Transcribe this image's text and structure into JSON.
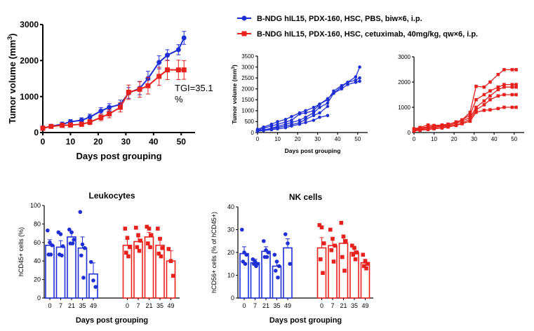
{
  "colors": {
    "pbs": "#1f2fd6",
    "cetux": "#e8211d",
    "axis": "#000000"
  },
  "legend": {
    "pbs": "B-NDG hIL15, PDX-160, HSC, PBS, biw×6, i.p.",
    "cetux": "B-NDG hIL15, PDX-160, HSC, cetuximab, 40mg/kg, qw×6, i.p."
  },
  "chart_data": [
    {
      "id": "mean",
      "type": "line",
      "title": "",
      "xlabel": "Days post grouping",
      "ylabel_main": "Tumor volume (mm",
      "ylabel_sup": "3",
      "ylabel_end": ")",
      "xlim": [
        0,
        55
      ],
      "ylim": [
        0,
        3000
      ],
      "xticks": [
        0,
        10,
        20,
        30,
        40,
        50
      ],
      "yticks": [
        0,
        1000,
        2000,
        3000
      ],
      "annotation": [
        "TGI=35.1",
        "%"
      ],
      "series": [
        {
          "name": "pbs",
          "x": [
            0,
            3,
            7,
            10,
            14,
            17,
            21,
            24,
            28,
            31,
            35,
            38,
            42,
            45,
            49,
            51
          ],
          "y": [
            120,
            175,
            230,
            300,
            340,
            430,
            600,
            700,
            780,
            1100,
            1230,
            1500,
            1950,
            2150,
            2300,
            2630
          ],
          "err": [
            60,
            50,
            60,
            60,
            70,
            80,
            90,
            100,
            120,
            150,
            180,
            200,
            180,
            150,
            140,
            180
          ]
        },
        {
          "name": "cetux",
          "x": [
            0,
            3,
            7,
            10,
            14,
            17,
            21,
            24,
            28,
            31,
            35,
            38,
            42,
            45,
            49,
            51
          ],
          "y": [
            120,
            170,
            200,
            210,
            230,
            290,
            420,
            520,
            700,
            1120,
            1200,
            1300,
            1560,
            1740,
            1740,
            1740
          ],
          "err": [
            60,
            50,
            60,
            60,
            60,
            70,
            90,
            110,
            130,
            200,
            220,
            230,
            250,
            270,
            270,
            260
          ]
        }
      ]
    },
    {
      "id": "pbs-ind",
      "type": "line",
      "xlabel": "Days post grouping",
      "ylabel_main": "Tumor volume (mm",
      "ylabel_sup": "3",
      "ylabel_end": ")",
      "xlim": [
        0,
        55
      ],
      "ylim": [
        0,
        3500
      ],
      "xticks": [
        0,
        10,
        20,
        30,
        40,
        50
      ],
      "yticks": [
        0,
        500,
        1000,
        1500,
        2000,
        2500,
        3000,
        3500
      ],
      "series": [
        {
          "x": [
            0,
            3,
            7,
            10,
            14,
            17,
            21,
            24,
            28,
            31,
            35,
            38,
            42,
            45,
            49,
            51
          ],
          "y": [
            150,
            250,
            380,
            500,
            600,
            730,
            900,
            1000,
            1150,
            1300,
            1550,
            1800,
            2100,
            2300,
            2550,
            3000
          ]
        },
        {
          "x": [
            0,
            3,
            7,
            10,
            14,
            17,
            21,
            24,
            28,
            31,
            35,
            38,
            42,
            45,
            49,
            51
          ],
          "y": [
            100,
            200,
            300,
            380,
            480,
            560,
            850,
            900,
            1000,
            1300,
            1500,
            1900,
            2150,
            2300,
            2400,
            2500
          ]
        },
        {
          "x": [
            0,
            3,
            7,
            10,
            14,
            17,
            21,
            24,
            28,
            31,
            35,
            38,
            42,
            45,
            49,
            51
          ],
          "y": [
            80,
            120,
            200,
            280,
            380,
            460,
            560,
            700,
            900,
            1150,
            1350,
            1800,
            2000,
            2200,
            2300,
            2350
          ]
        },
        {
          "x": [
            0,
            3,
            7,
            10,
            14,
            17,
            21,
            24,
            28,
            31,
            35
          ],
          "y": [
            80,
            120,
            180,
            230,
            300,
            360,
            450,
            600,
            780,
            900,
            1200
          ]
        },
        {
          "x": [
            0,
            3,
            7,
            10,
            14,
            17,
            21,
            24,
            28,
            31,
            35
          ],
          "y": [
            60,
            90,
            130,
            170,
            220,
            300,
            380,
            460,
            560,
            700,
            780
          ]
        }
      ]
    },
    {
      "id": "cetux-ind",
      "type": "line",
      "xlim": [
        0,
        55
      ],
      "ylim": [
        0,
        3000
      ],
      "xticks": [
        0,
        10,
        20,
        30,
        40,
        50
      ],
      "yticks": [
        0,
        1000,
        2000,
        3000
      ],
      "series": [
        {
          "x": [
            0,
            3,
            7,
            10,
            14,
            17,
            21,
            24,
            28,
            31,
            35,
            38,
            42,
            45,
            49,
            51
          ],
          "y": [
            150,
            200,
            300,
            280,
            300,
            330,
            400,
            500,
            800,
            1830,
            1800,
            2000,
            2300,
            2490,
            2490,
            2490
          ]
        },
        {
          "x": [
            0,
            3,
            7,
            10,
            14,
            17,
            21,
            24,
            28,
            31,
            35,
            38,
            42,
            45,
            49,
            51
          ],
          "y": [
            120,
            180,
            220,
            250,
            280,
            320,
            420,
            500,
            700,
            1300,
            1500,
            1650,
            1800,
            1900,
            1900,
            1900
          ]
        },
        {
          "x": [
            0,
            3,
            7,
            10,
            14,
            17,
            21,
            24,
            28,
            31,
            35,
            38,
            42,
            45,
            49,
            51
          ],
          "y": [
            100,
            150,
            200,
            220,
            250,
            280,
            360,
            450,
            600,
            1000,
            1250,
            1450,
            1700,
            1800,
            1800,
            1800
          ]
        },
        {
          "x": [
            0,
            3,
            7,
            10,
            14,
            17,
            21,
            24,
            28,
            31,
            35,
            38,
            42,
            45,
            49,
            51
          ],
          "y": [
            80,
            120,
            150,
            180,
            200,
            250,
            300,
            380,
            520,
            900,
            1100,
            1300,
            1450,
            1500,
            1500,
            1500
          ]
        },
        {
          "x": [
            0,
            3,
            7,
            10,
            14,
            17,
            21,
            24,
            28,
            31,
            35,
            38,
            42,
            45,
            49,
            51
          ],
          "y": [
            60,
            90,
            120,
            150,
            180,
            220,
            280,
            350,
            450,
            800,
            880,
            900,
            950,
            1000,
            1000,
            1000
          ]
        }
      ]
    },
    {
      "id": "leuko",
      "type": "bar",
      "title": "Leukocytes",
      "ylabel": "hCD45+ cells (%)",
      "xlabel": "Days post grouping",
      "ylim": [
        0,
        100
      ],
      "yticks": [
        0,
        20,
        40,
        60,
        80,
        100
      ],
      "categories": [
        "0",
        "7",
        "21",
        "35",
        "49"
      ],
      "series": [
        {
          "name": "pbs",
          "marker": "circle",
          "values": [
            57,
            55,
            66,
            54,
            26
          ],
          "err": [
            6,
            7,
            5,
            12,
            12
          ],
          "points": [
            [
              73,
              60,
              57,
              47,
              47
            ],
            [
              71,
              69,
              56,
              47,
              46
            ],
            [
              74,
              71,
              63,
              59,
              59
            ],
            [
              93,
              58,
              54,
              46,
              22
            ],
            [
              39,
              19,
              12
            ]
          ]
        },
        {
          "name": "cetux",
          "marker": "square",
          "values": [
            57,
            61,
            66,
            57,
            40
          ],
          "err": [
            7,
            5,
            5,
            8,
            11
          ],
          "points": [
            [
              75,
              65,
              55,
              49,
              45
            ],
            [
              76,
              68,
              62,
              55,
              51
            ],
            [
              77,
              75,
              68,
              59,
              55
            ],
            [
              75,
              64,
              54,
              48,
              45
            ],
            [
              53,
              40,
              24
            ]
          ]
        }
      ]
    },
    {
      "id": "nk",
      "type": "bar",
      "title": "NK cells",
      "ylabel": "hCD56+ cells (% of hCD45+)",
      "xlabel": "Days post grouping",
      "ylim": [
        0,
        40
      ],
      "yticks": [
        0,
        10,
        20,
        30,
        40
      ],
      "categories": [
        "0",
        "7",
        "21",
        "35",
        "49"
      ],
      "series": [
        {
          "name": "pbs",
          "marker": "circle",
          "values": [
            19.5,
            15.5,
            20.5,
            14,
            22
          ],
          "err": [
            3,
            1.5,
            2,
            2,
            4
          ],
          "points": [
            [
              30,
              20,
              19,
              16,
              15
            ],
            [
              17,
              16,
              15,
              15,
              14
            ],
            [
              25,
              21,
              20,
              18,
              18
            ],
            [
              19,
              16,
              14,
              12,
              9
            ],
            [
              28,
              24,
              15
            ]
          ]
        },
        {
          "name": "cetux",
          "marker": "square",
          "values": [
            22,
            23,
            24,
            20,
            15.5
          ],
          "err": [
            4.5,
            3.5,
            2.5,
            1.5,
            1.5
          ],
          "points": [
            [
              32,
              31,
              24,
              17,
              11
            ],
            [
              30,
              26,
              23,
              21,
              16
            ],
            [
              33,
              27,
              25,
              18,
              12
            ],
            [
              23,
              22,
              20,
              19,
              17
            ],
            [
              19,
              16,
              15,
              14,
              13
            ]
          ]
        }
      ]
    }
  ]
}
